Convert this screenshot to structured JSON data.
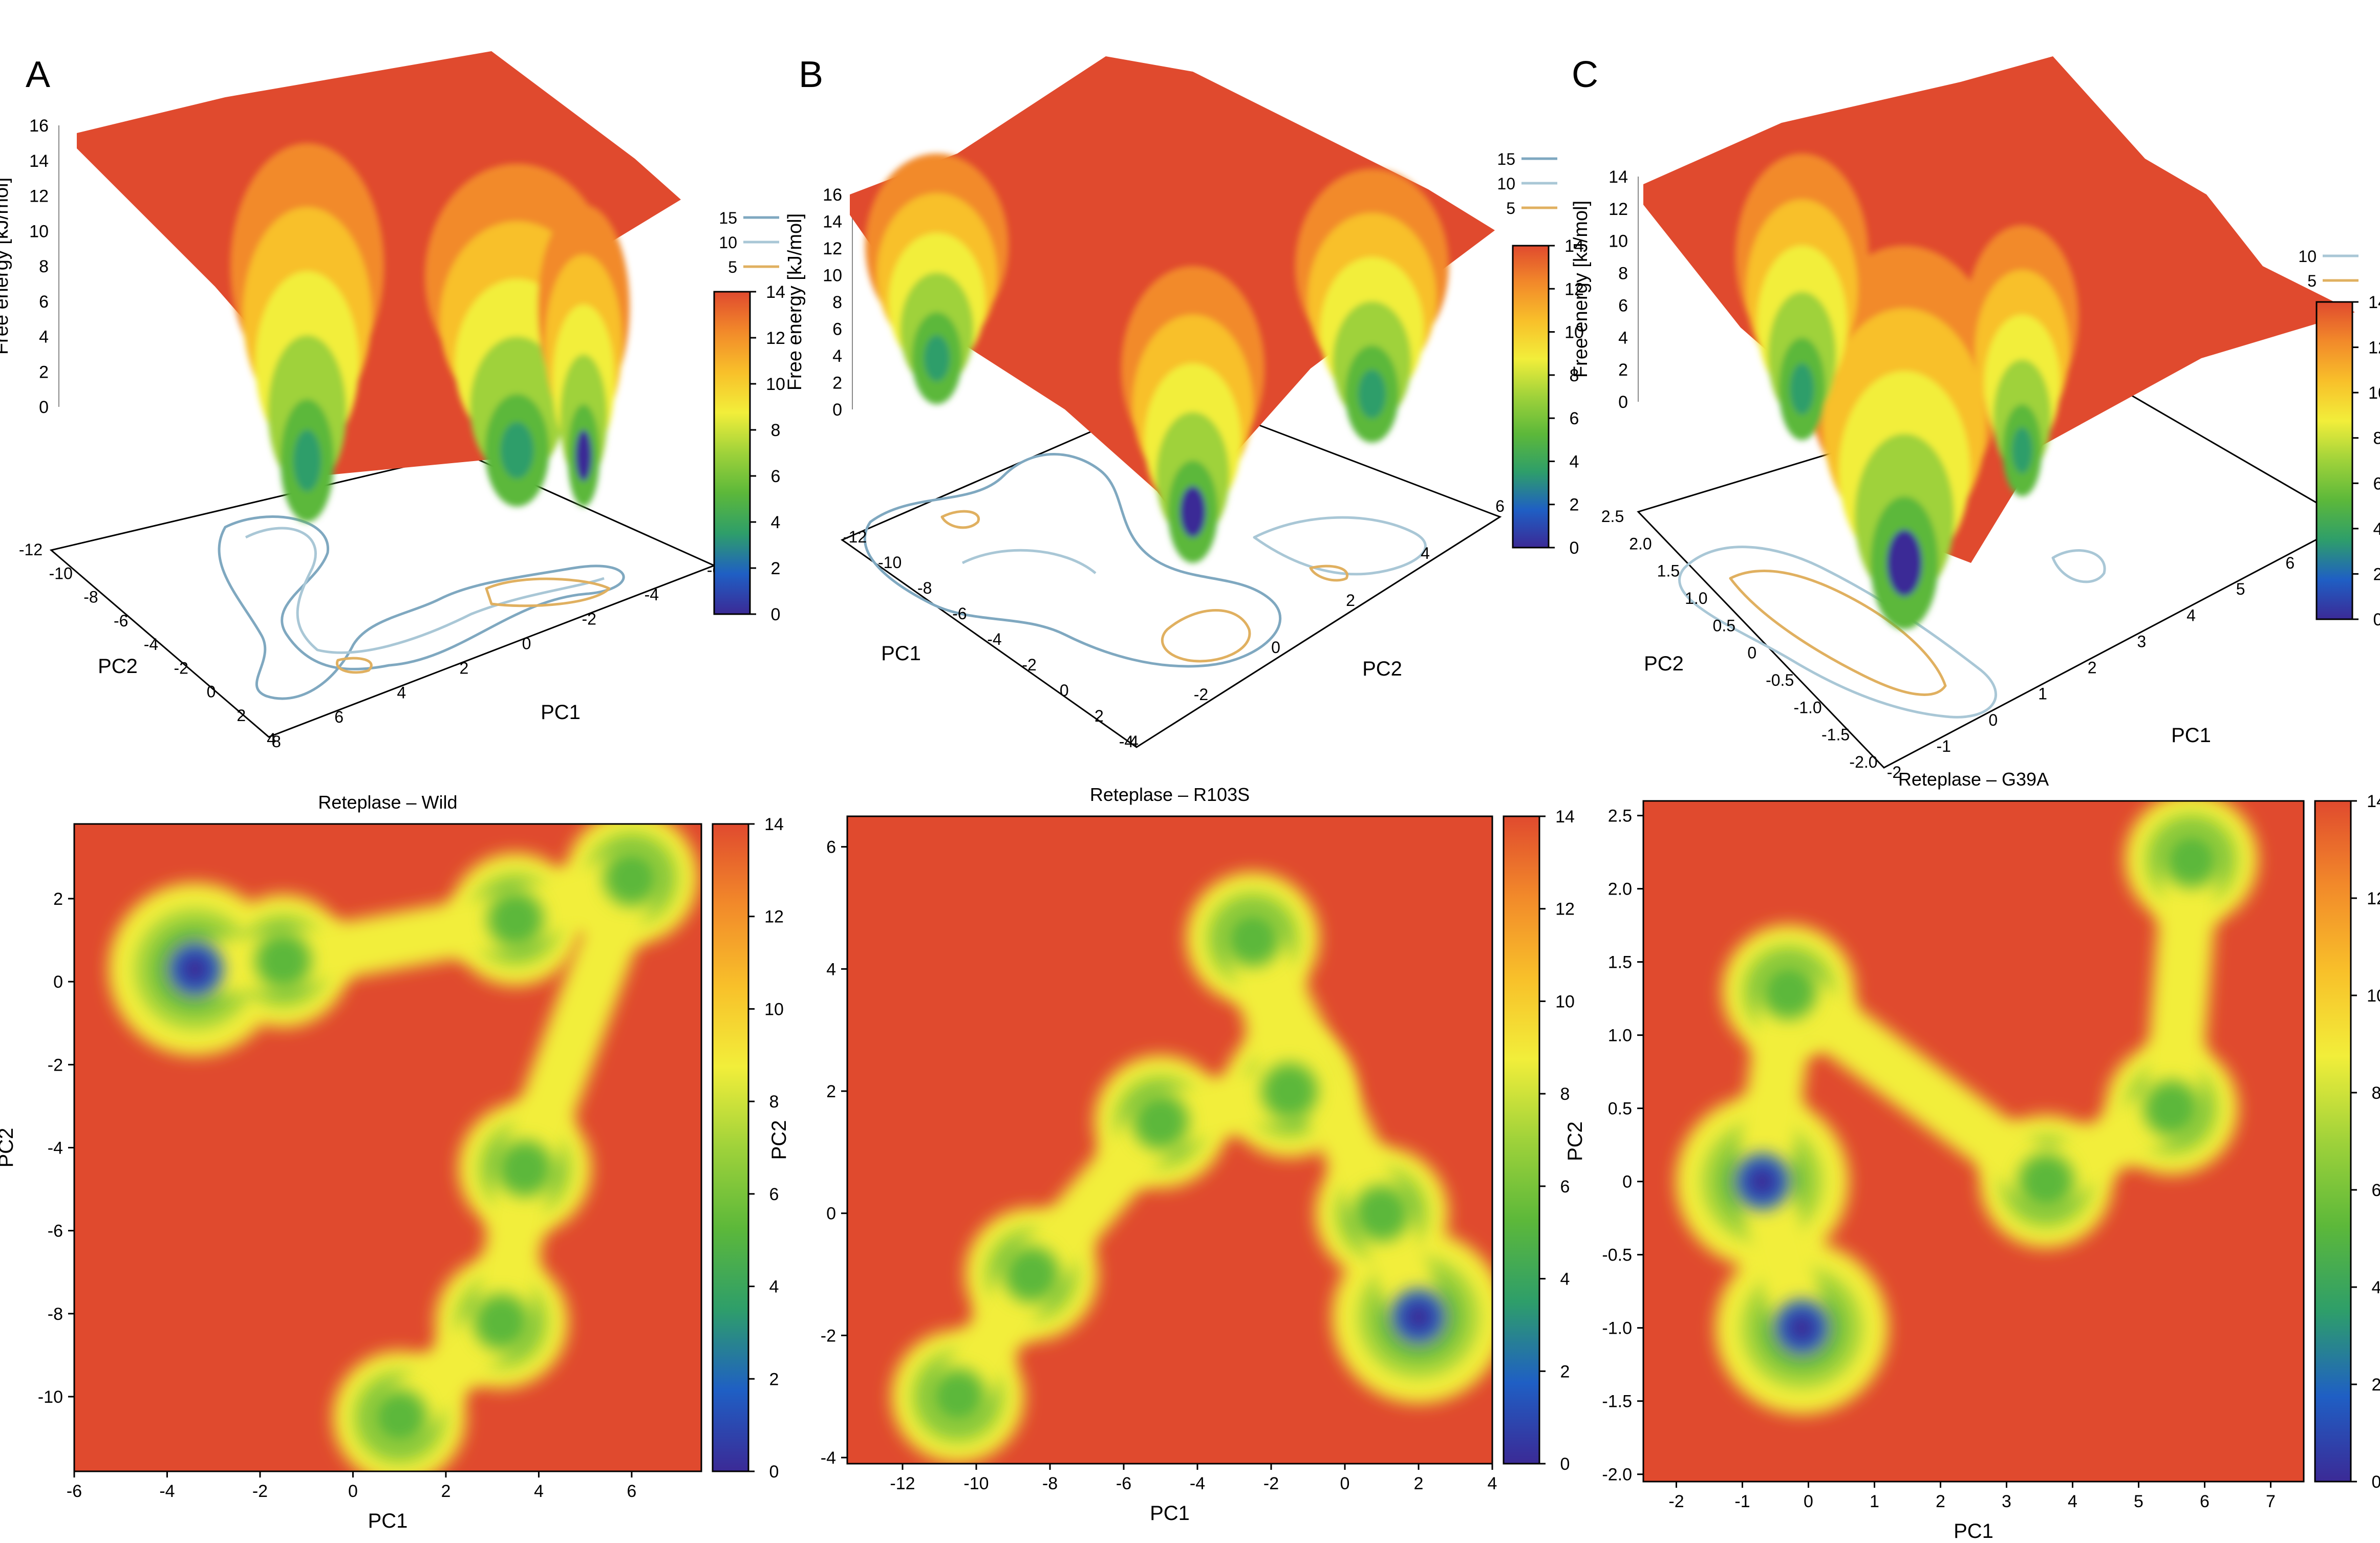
{
  "colors": {
    "scale": [
      "#3b2a96",
      "#1f5fc4",
      "#2e9e6a",
      "#5cb83a",
      "#9fd23a",
      "#f2ee3a",
      "#f8c02a",
      "#f28a2a",
      "#e04a2e"
    ],
    "high": "#e04a2e",
    "contour_15": "#7fa8c0",
    "contour_10": "#a9c7d6",
    "contour_5": "#e0b060",
    "frame": "#000000"
  },
  "panels": [
    {
      "letter": "A",
      "surface": {
        "z_label": "Free energy [kJ/mol]",
        "z_ticks": [
          "0",
          "2",
          "4",
          "6",
          "8",
          "10",
          "12",
          "14",
          "16"
        ],
        "x_label": "PC1",
        "y_label": "PC2",
        "x_ticks": [
          "-6",
          "-4",
          "-2",
          "0",
          "2",
          "4",
          "6",
          "8"
        ],
        "y_ticks": [
          "-12",
          "-10",
          "-8",
          "-6",
          "-4",
          "-2",
          "0",
          "2",
          "4"
        ],
        "legend": [
          "15",
          "10",
          "5"
        ],
        "colorbar_ticks": [
          "0",
          "2",
          "4",
          "6",
          "8",
          "10",
          "12",
          "14"
        ]
      },
      "heatmap": {
        "title": "Reteplase – Wild",
        "xlabel": "PC1",
        "ylabel": "PC2",
        "x_ticks": [
          "-6",
          "-4",
          "-2",
          "0",
          "2",
          "4",
          "6"
        ],
        "y_ticks": [
          "2",
          "0",
          "-2",
          "-4",
          "-6",
          "-8",
          "-10"
        ],
        "colorbar_ticks": [
          "0",
          "2",
          "4",
          "6",
          "8",
          "10",
          "12",
          "14"
        ]
      }
    },
    {
      "letter": "B",
      "surface": {
        "z_label": "Free energy [kJ/mol]",
        "z_ticks": [
          "0",
          "2",
          "4",
          "6",
          "8",
          "10",
          "12",
          "14",
          "16"
        ],
        "x_label": "PC1",
        "y_label": "PC2",
        "x_ticks": [
          "-12",
          "-10",
          "-8",
          "-6",
          "-4",
          "-2",
          "0",
          "2",
          "4"
        ],
        "y_ticks": [
          "-4",
          "-2",
          "0",
          "2",
          "4",
          "6"
        ],
        "legend": [
          "15",
          "10",
          "5"
        ],
        "colorbar_ticks": [
          "0",
          "2",
          "4",
          "6",
          "8",
          "10",
          "12",
          "14"
        ]
      },
      "heatmap": {
        "title": "Reteplase – R103S",
        "xlabel": "PC1",
        "ylabel": "PC2",
        "x_ticks": [
          "-12",
          "-10",
          "-8",
          "-6",
          "-4",
          "-2",
          "0",
          "2",
          "4"
        ],
        "y_ticks": [
          "6",
          "4",
          "2",
          "0",
          "-2",
          "-4"
        ],
        "colorbar_ticks": [
          "0",
          "2",
          "4",
          "6",
          "8",
          "10",
          "12",
          "14"
        ]
      }
    },
    {
      "letter": "C",
      "surface": {
        "z_label": "Free energy [kJ/mol]",
        "z_ticks": [
          "0",
          "2",
          "4",
          "6",
          "8",
          "10",
          "12",
          "14"
        ],
        "x_label": "PC1",
        "y_label": "PC2",
        "x_ticks": [
          "-2",
          "-1",
          "0",
          "1",
          "2",
          "3",
          "4",
          "5",
          "6",
          "7"
        ],
        "y_ticks": [
          "2.5",
          "2.0",
          "1.5",
          "1.0",
          "0.5",
          "0",
          "-0.5",
          "-1.0",
          "-1.5",
          "-2.0"
        ],
        "legend": [
          "10",
          "5"
        ],
        "colorbar_ticks": [
          "0",
          "2",
          "4",
          "6",
          "8",
          "10",
          "12",
          "14"
        ]
      },
      "heatmap": {
        "title": "Reteplase – G39A",
        "xlabel": "PC1",
        "ylabel": "PC2",
        "x_ticks": [
          "-2",
          "-1",
          "0",
          "1",
          "2",
          "3",
          "4",
          "5",
          "6",
          "7"
        ],
        "y_ticks": [
          "2.5",
          "2.0",
          "1.5",
          "1.0",
          "0.5",
          "0",
          "-0.5",
          "-1.0",
          "-1.5",
          "-2.0"
        ],
        "colorbar_ticks": [
          "0",
          "2",
          "4",
          "6",
          "8",
          "10",
          "12",
          "14"
        ]
      }
    }
  ],
  "chart_data": [
    {
      "type": "heatmap",
      "title": "Reteplase – Wild",
      "xlabel": "PC1",
      "ylabel": "PC2",
      "xlim": [
        -6,
        7.5
      ],
      "ylim": [
        -11.8,
        3.8
      ],
      "zlim": [
        0,
        15
      ],
      "colorbar_label": "Free energy [kJ/mol]",
      "basins": [
        {
          "x": -3.4,
          "y": 0.3,
          "min": 0.5,
          "note": "global minimum"
        },
        {
          "x": -1.5,
          "y": 0.5,
          "min": 5
        },
        {
          "x": 3.5,
          "y": 1.5,
          "min": 5
        },
        {
          "x": 6.0,
          "y": 2.5,
          "min": 7
        },
        {
          "x": 3.7,
          "y": -4.5,
          "min": 6
        },
        {
          "x": 3.2,
          "y": -8.2,
          "min": 7
        },
        {
          "x": 1.0,
          "y": -10.5,
          "min": 6
        }
      ]
    },
    {
      "type": "heatmap",
      "title": "Reteplase – R103S",
      "xlabel": "PC1",
      "ylabel": "PC2",
      "xlim": [
        -13.5,
        4
      ],
      "ylim": [
        -4.1,
        6.5
      ],
      "zlim": [
        0,
        15
      ],
      "colorbar_label": "Free energy [kJ/mol]",
      "basins": [
        {
          "x": 2.0,
          "y": -1.7,
          "min": 0.5,
          "note": "global minimum"
        },
        {
          "x": 1.0,
          "y": 0.0,
          "min": 5
        },
        {
          "x": -2.5,
          "y": 4.5,
          "min": 6
        },
        {
          "x": -1.5,
          "y": 2.0,
          "min": 6
        },
        {
          "x": -5.0,
          "y": 1.5,
          "min": 6
        },
        {
          "x": -8.5,
          "y": -1.0,
          "min": 7
        },
        {
          "x": -10.5,
          "y": -3.0,
          "min": 6
        }
      ]
    },
    {
      "type": "heatmap",
      "title": "Reteplase – G39A",
      "xlabel": "PC1",
      "ylabel": "PC2",
      "xlim": [
        -2.5,
        7.5
      ],
      "ylim": [
        -2.05,
        2.6
      ],
      "zlim": [
        0,
        14
      ],
      "colorbar_label": "Free energy [kJ/mol]",
      "basins": [
        {
          "x": -0.1,
          "y": -1.0,
          "min": 0.5,
          "note": "global minimum"
        },
        {
          "x": -0.7,
          "y": 0.0,
          "min": 2
        },
        {
          "x": -0.3,
          "y": 1.3,
          "min": 5
        },
        {
          "x": 3.6,
          "y": 0.0,
          "min": 6
        },
        {
          "x": 5.5,
          "y": 0.5,
          "min": 8
        },
        {
          "x": 5.8,
          "y": 2.2,
          "min": 10
        }
      ]
    }
  ]
}
